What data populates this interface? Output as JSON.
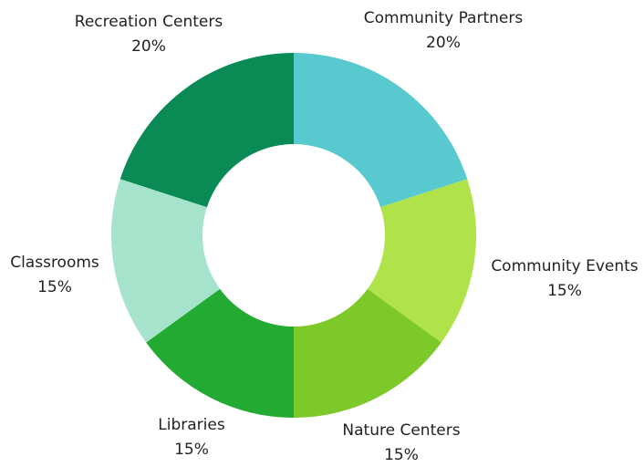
{
  "chart_data": {
    "type": "donut",
    "categories": [
      "Community Partners",
      "Community Events",
      "Nature Centers",
      "Libraries",
      "Classrooms",
      "Recreation Centers"
    ],
    "values": [
      20,
      15,
      15,
      15,
      15,
      20
    ],
    "value_labels": [
      "20%",
      "15%",
      "15%",
      "15%",
      "15%",
      "20%"
    ],
    "colors": [
      "#57c9cf",
      "#b0e34a",
      "#7dc92a",
      "#22aa33",
      "#a6e3cc",
      "#0a8a55"
    ]
  }
}
